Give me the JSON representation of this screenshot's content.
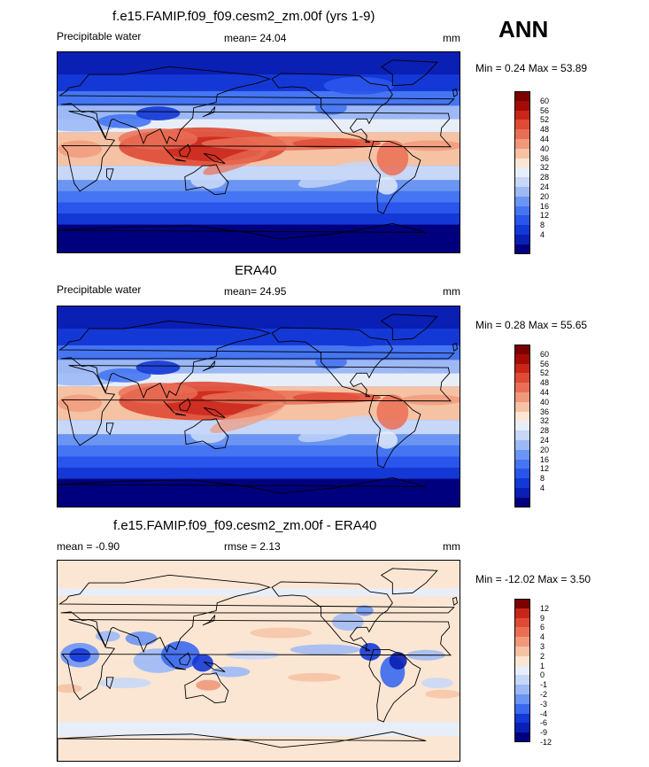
{
  "season": "ANN",
  "colors": {
    "abs": [
      "#00007f",
      "#0a1fb3",
      "#1438d6",
      "#2a55ec",
      "#4575f2",
      "#6b95f3",
      "#9cb9f6",
      "#c6d7f8",
      "#e7eef8",
      "#fbe6d3",
      "#f6c2a4",
      "#f1987a",
      "#ea6e55",
      "#df4a35",
      "#c9261a",
      "#a30c06",
      "#7c0000"
    ],
    "diff": [
      "#00007f",
      "#0a1fb3",
      "#1438d6",
      "#3a68ee",
      "#6b95f3",
      "#9cb9f6",
      "#c6d7f8",
      "#e7eef8",
      "#fbe6d3",
      "#f6c2a4",
      "#f1987a",
      "#ea6e55",
      "#df4a35",
      "#c9261a",
      "#7c0000"
    ]
  },
  "panels": [
    {
      "title": "f.e15.FAMIP.f09_f09.cesm2_zm.00f (yrs 1-9)",
      "field": "Precipitable water",
      "mean_text": "mean=  24.04",
      "units": "mm",
      "minmax_text": "Min =   0.24 Max =  53.89"
    },
    {
      "title": "ERA40",
      "field": "Precipitable water",
      "mean_text": "mean=  24.95",
      "units": "mm",
      "minmax_text": "Min =   0.28 Max =  55.65"
    },
    {
      "title": "f.e15.FAMIP.f09_f09.cesm2_zm.00f - ERA40",
      "mean_text": "mean =  -0.90",
      "rmse_text": "rmse =   2.13",
      "units": "mm",
      "minmax_text": "Min = -12.02 Max =   3.50"
    }
  ],
  "chart_data": [
    {
      "type": "heatmap",
      "title": "f.e15.FAMIP.f09_f09.cesm2_zm.00f (yrs 1-9)",
      "variable": "Precipitable water",
      "units": "mm",
      "mean": 24.04,
      "min": 0.24,
      "max": 53.89,
      "colorbar_levels": [
        4,
        8,
        12,
        16,
        20,
        24,
        28,
        32,
        36,
        40,
        44,
        48,
        52,
        56,
        60
      ]
    },
    {
      "type": "heatmap",
      "title": "ERA40",
      "variable": "Precipitable water",
      "units": "mm",
      "mean": 24.95,
      "min": 0.28,
      "max": 55.65,
      "colorbar_levels": [
        4,
        8,
        12,
        16,
        20,
        24,
        28,
        32,
        36,
        40,
        44,
        48,
        52,
        56,
        60
      ]
    },
    {
      "type": "heatmap",
      "title": "f.e15.FAMIP.f09_f09.cesm2_zm.00f - ERA40",
      "units": "mm",
      "mean": -0.9,
      "rmse": 2.13,
      "min": -12.02,
      "max": 3.5,
      "colorbar_levels": [
        -12,
        -9,
        -6,
        -4,
        -3,
        -2,
        -1,
        0,
        1,
        2,
        3,
        4,
        6,
        9,
        12
      ]
    }
  ],
  "colorbars": {
    "abs_labels": [
      "60",
      "56",
      "52",
      "48",
      "44",
      "40",
      "36",
      "32",
      "28",
      "24",
      "20",
      "16",
      "12",
      "8",
      "4"
    ],
    "diff_labels": [
      "12",
      "9",
      "6",
      "4",
      "3",
      "2",
      "1",
      "0",
      "-1",
      "-2",
      "-3",
      "-4",
      "-6",
      "-9",
      "-12"
    ]
  }
}
